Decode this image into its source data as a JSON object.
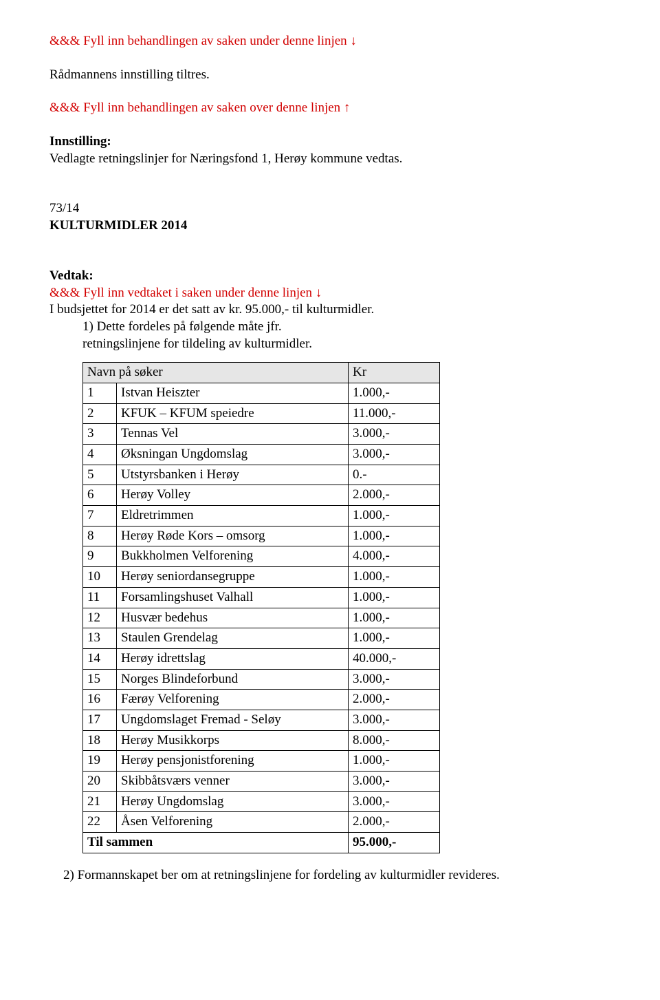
{
  "line1": "&&& Fyll inn behandlingen av saken under denne linjen ↓",
  "line2": "Rådmannens innstilling tiltres.",
  "line3": "&&& Fyll inn behandlingen av saken over denne linjen ↑",
  "innstilling_label": "Innstilling:",
  "innstilling_body": "Vedlagte retningslinjer for Næringsfond 1, Herøy kommune vedtas.",
  "case_ref": "73/14",
  "case_title": "KULTURMIDLER 2014",
  "vedtak_label": "Vedtak:",
  "vedtak_line": "&&& Fyll inn vedtaket i saken under  denne linjen ↓",
  "budget_line": "I budsjettet for 2014 er det satt av kr. 95.000,- til kulturmidler.",
  "item1_num": "1)",
  "item1_a": "Dette fordeles på følgende måte jfr.",
  "item1_b": "retningslinjene for tildeling av kulturmidler.",
  "table": {
    "header_name": "Navn på søker",
    "header_kr": "Kr",
    "rows": [
      {
        "n": "1",
        "name": "Istvan Heiszter",
        "kr": "1.000,-"
      },
      {
        "n": "2",
        "name": "KFUK – KFUM speiedre",
        "kr": "11.000,-"
      },
      {
        "n": "3",
        "name": "Tennas Vel",
        "kr": "3.000,-"
      },
      {
        "n": "4",
        "name": "Øksningan Ungdomslag",
        "kr": "3.000,-"
      },
      {
        "n": "5",
        "name": "Utstyrsbanken i Herøy",
        "kr": "            0.-"
      },
      {
        "n": "6",
        "name": "Herøy Volley",
        "kr": "2.000,-"
      },
      {
        "n": "7",
        "name": "Eldretrimmen",
        "kr": "1.000,-"
      },
      {
        "n": "8",
        "name": "Herøy Røde Kors – omsorg",
        "kr": "1.000,-"
      },
      {
        "n": "9",
        "name": "Bukkholmen Velforening",
        "kr": "4.000,-"
      },
      {
        "n": "10",
        "name": "Herøy seniordansegruppe",
        "kr": "1.000,-"
      },
      {
        "n": "11",
        "name": "Forsamlingshuset Valhall",
        "kr": "1.000,-"
      },
      {
        "n": "12",
        "name": "Husvær bedehus",
        "kr": "1.000,-"
      },
      {
        "n": "13",
        "name": "Staulen Grendelag",
        "kr": "1.000,-"
      },
      {
        "n": "14",
        "name": "Herøy idrettslag",
        "kr": "40.000,-"
      },
      {
        "n": "15",
        "name": "Norges Blindeforbund",
        "kr": "3.000,-"
      },
      {
        "n": "16",
        "name": "Færøy Velforening",
        "kr": "2.000,-"
      },
      {
        "n": "17",
        "name": "Ungdomslaget Fremad - Seløy",
        "kr": "3.000,-"
      },
      {
        "n": "18",
        "name": "Herøy Musikkorps",
        "kr": "8.000,-"
      },
      {
        "n": "19",
        "name": "Herøy pensjonistforening",
        "kr": "1.000,-"
      },
      {
        "n": "20",
        "name": "Skibbåtsværs venner",
        "kr": "3.000,-"
      },
      {
        "n": "21",
        "name": "Herøy Ungdomslag",
        "kr": "3.000,-"
      },
      {
        "n": "22",
        "name": "Åsen Velforening",
        "kr": "2.000,-"
      }
    ],
    "footer_label": "Til sammen",
    "footer_total": "95.000,-"
  },
  "item2_num": "2)",
  "item2_text": "Formannskapet ber om at retningslinjene for fordeling av kulturmidler revideres."
}
